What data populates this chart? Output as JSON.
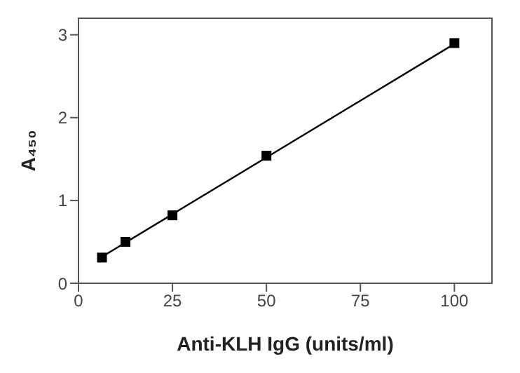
{
  "chart_data": {
    "type": "scatter",
    "xlabel": "Anti-KLH IgG (units/ml)",
    "ylabel": "A₄₅₀",
    "x": [
      6.25,
      12.5,
      25,
      50,
      100
    ],
    "series": [
      {
        "color": "#000000",
        "values": [
          0.31,
          0.5,
          0.82,
          1.54,
          2.9
        ],
        "marker": "square"
      },
      {
        "type": "line",
        "color": "#000000",
        "x": [
          6.25,
          100
        ],
        "values": [
          0.32,
          2.89
        ],
        "marker": "none",
        "line_style": "solid"
      }
    ],
    "xlim": [
      0,
      110
    ],
    "xticks": [
      0,
      25,
      50,
      75,
      100
    ],
    "ylim": [
      0,
      3.2
    ],
    "yticks": [
      0,
      1,
      2,
      3
    ]
  }
}
